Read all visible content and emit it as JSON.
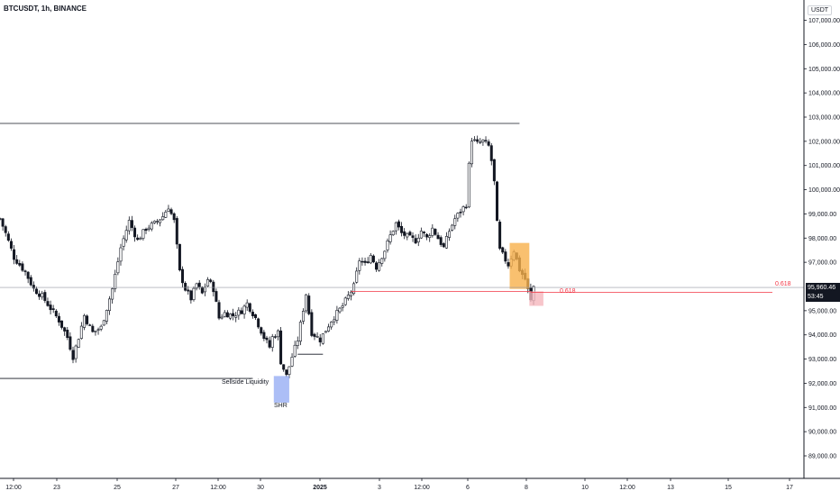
{
  "symbol_label": "BTCUSDT, 1h, BINANCE",
  "currency_label": "USDT",
  "colors": {
    "candle": "#131722",
    "crosshair_line": "#9598a1",
    "fib_line": "#f23645",
    "fib_text": "#f23645",
    "sellside_line": "#131722",
    "ath_line": "#131722",
    "shr_box": "#9db3f5",
    "orange_box": "#f7b04b",
    "pink_box": "#f5b7bd",
    "price_badge_bg": "#131722",
    "price_badge_text": "#ffffff",
    "axis_text": "#131722"
  },
  "annotations": {
    "sellside_liquidity": "Sellside Liquidity",
    "shr": "SHR",
    "fib_left": "0.618",
    "fib_right": "0.618"
  },
  "current_price": {
    "price": "95,960.46",
    "countdown": "53:45"
  },
  "chart_data": {
    "type": "candlestick",
    "title": "BTCUSDT, 1h, BINANCE",
    "ylabel": "USDT",
    "ylim": [
      88000,
      107500
    ],
    "y_ticks": [
      {
        "value": 107000,
        "label": "107,000.00"
      },
      {
        "value": 106000,
        "label": "106,000.00"
      },
      {
        "value": 105000,
        "label": "105,000.00"
      },
      {
        "value": 104000,
        "label": "104,000.00"
      },
      {
        "value": 103000,
        "label": "103,000.00"
      },
      {
        "value": 102000,
        "label": "102,000.00"
      },
      {
        "value": 101000,
        "label": "101,000.00"
      },
      {
        "value": 100000,
        "label": "100,000.00"
      },
      {
        "value": 99000,
        "label": "99,000.00"
      },
      {
        "value": 98000,
        "label": "98,000.00"
      },
      {
        "value": 97000,
        "label": "97,000.00"
      },
      {
        "value": 95000,
        "label": "95,000.00"
      },
      {
        "value": 94000,
        "label": "94,000.00"
      },
      {
        "value": 93000,
        "label": "93,000.00"
      },
      {
        "value": 92000,
        "label": "92,000.00"
      },
      {
        "value": 91000,
        "label": "91,000.00"
      },
      {
        "value": 90000,
        "label": "90,000.00"
      },
      {
        "value": 89000,
        "label": "89,000.00"
      }
    ],
    "x_ticks": [
      {
        "t": 0,
        "label": "12:00",
        "bold": false
      },
      {
        "t": 1,
        "label": "23",
        "bold": false
      },
      {
        "t": 2,
        "label": "25",
        "bold": false
      },
      {
        "t": 3,
        "label": "27",
        "bold": false
      },
      {
        "t": 4,
        "label": "12:00",
        "bold": false
      },
      {
        "t": 5,
        "label": "30",
        "bold": false
      },
      {
        "t": 6,
        "label": "2025",
        "bold": true
      },
      {
        "t": 7,
        "label": "3",
        "bold": false
      },
      {
        "t": 8,
        "label": "12:00",
        "bold": false
      },
      {
        "t": 9,
        "label": "6",
        "bold": false
      },
      {
        "t": 10,
        "label": "8",
        "bold": false
      },
      {
        "t": 11,
        "label": "10",
        "bold": false
      },
      {
        "t": 12,
        "label": "12:00",
        "bold": false
      },
      {
        "t": 13,
        "label": "13",
        "bold": false
      },
      {
        "t": 14,
        "label": "15",
        "bold": false
      },
      {
        "t": 15,
        "label": "17",
        "bold": false
      }
    ],
    "close_path": [
      [
        0,
        98800
      ],
      [
        2,
        98200
      ],
      [
        5,
        97200
      ],
      [
        9,
        96600
      ],
      [
        12,
        95900
      ],
      [
        15,
        95600
      ],
      [
        18,
        95100
      ],
      [
        21,
        94600
      ],
      [
        24,
        93900
      ],
      [
        26,
        93100
      ],
      [
        28,
        93900
      ],
      [
        30,
        94800
      ],
      [
        33,
        94100
      ],
      [
        36,
        94300
      ],
      [
        40,
        95900
      ],
      [
        43,
        97600
      ],
      [
        46,
        98700
      ],
      [
        49,
        97900
      ],
      [
        52,
        98400
      ],
      [
        55,
        98600
      ],
      [
        58,
        98900
      ],
      [
        60,
        99300
      ],
      [
        62,
        98700
      ],
      [
        64,
        96600
      ],
      [
        66,
        95900
      ],
      [
        68,
        95500
      ],
      [
        70,
        96100
      ],
      [
        72,
        95700
      ],
      [
        74,
        96300
      ],
      [
        76,
        95900
      ],
      [
        78,
        94700
      ],
      [
        80,
        94900
      ],
      [
        83,
        94800
      ],
      [
        86,
        95000
      ],
      [
        88,
        95300
      ],
      [
        91,
        94700
      ],
      [
        94,
        93900
      ],
      [
        96,
        93500
      ],
      [
        97,
        93900
      ],
      [
        99,
        94100
      ],
      [
        100,
        92900
      ],
      [
        102,
        92300
      ],
      [
        104,
        93100
      ],
      [
        106,
        93800
      ],
      [
        109,
        95700
      ],
      [
        111,
        94100
      ],
      [
        114,
        93800
      ],
      [
        118,
        94600
      ],
      [
        122,
        95200
      ],
      [
        126,
        96000
      ],
      [
        128,
        97100
      ],
      [
        130,
        96900
      ],
      [
        132,
        97300
      ],
      [
        134,
        96800
      ],
      [
        137,
        97500
      ],
      [
        139,
        98100
      ],
      [
        141,
        98600
      ],
      [
        143,
        98200
      ],
      [
        146,
        98000
      ],
      [
        148,
        97900
      ],
      [
        150,
        98300
      ],
      [
        152,
        98000
      ],
      [
        154,
        98400
      ],
      [
        156,
        98000
      ],
      [
        158,
        97600
      ],
      [
        160,
        98300
      ],
      [
        162,
        98800
      ],
      [
        164,
        99100
      ],
      [
        166,
        99400
      ],
      [
        167,
        101000
      ],
      [
        168,
        102100
      ],
      [
        170,
        101900
      ],
      [
        172,
        102000
      ],
      [
        174,
        101800
      ],
      [
        175,
        101200
      ],
      [
        176,
        100300
      ],
      [
        177,
        98600
      ],
      [
        178,
        97500
      ],
      [
        179,
        97300
      ],
      [
        181,
        96900
      ],
      [
        183,
        97500
      ],
      [
        185,
        96700
      ],
      [
        187,
        96300
      ],
      [
        189,
        95400
      ],
      [
        190,
        96000
      ]
    ],
    "ath_level": 103000,
    "sellside_liquidity_level": 92200,
    "fib_0618_level": 95800,
    "current_price_level": 95960.46,
    "grid": false,
    "legend": "none"
  }
}
